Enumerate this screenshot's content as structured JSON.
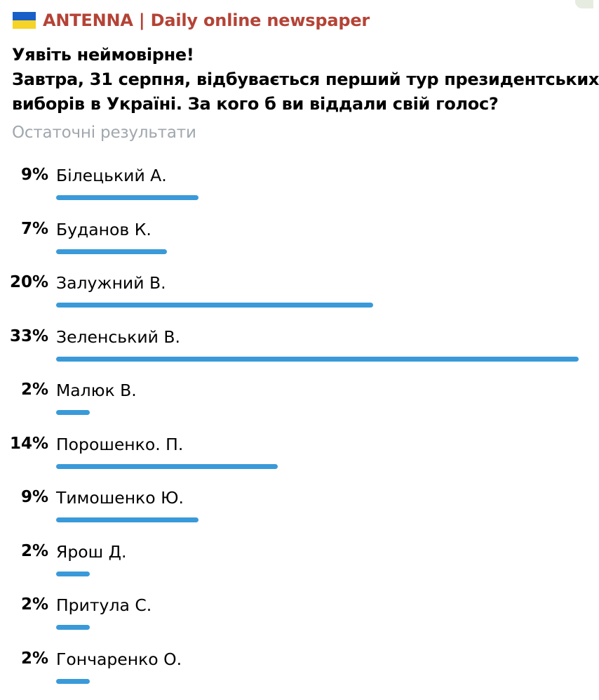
{
  "channel": {
    "flag_icon": "ukraine-flag-icon",
    "flag_colors": [
      "#1a5fc8",
      "#f5d327"
    ],
    "name": "ANTENNA | Daily online newspaper",
    "name_color": "#b44336"
  },
  "poll": {
    "question_lines": [
      "Уявіть неймовірне!",
      "Завтра, 31 серпня, відбувається перший тур президентських",
      "виборів в Україні. За кого б ви віддали свій голос?"
    ],
    "status": "Остаточні результати",
    "bar_color": "#3a9ad9",
    "options": [
      {
        "percent_label": "9%",
        "percent": 9,
        "label": "Білецький А."
      },
      {
        "percent_label": "7%",
        "percent": 7,
        "label": "Буданов К."
      },
      {
        "percent_label": "20%",
        "percent": 20,
        "label": "Залужний В."
      },
      {
        "percent_label": "33%",
        "percent": 33,
        "label": "Зеленський В."
      },
      {
        "percent_label": "2%",
        "percent": 2,
        "label": "Малюк В."
      },
      {
        "percent_label": "14%",
        "percent": 14,
        "label": "Порошенко. П."
      },
      {
        "percent_label": "9%",
        "percent": 9,
        "label": "Тимошенко Ю."
      },
      {
        "percent_label": "2%",
        "percent": 2,
        "label": "Ярош Д."
      },
      {
        "percent_label": "2%",
        "percent": 2,
        "label": "Притула С."
      },
      {
        "percent_label": "2%",
        "percent": 2,
        "label": "Гончаренко О."
      }
    ]
  }
}
